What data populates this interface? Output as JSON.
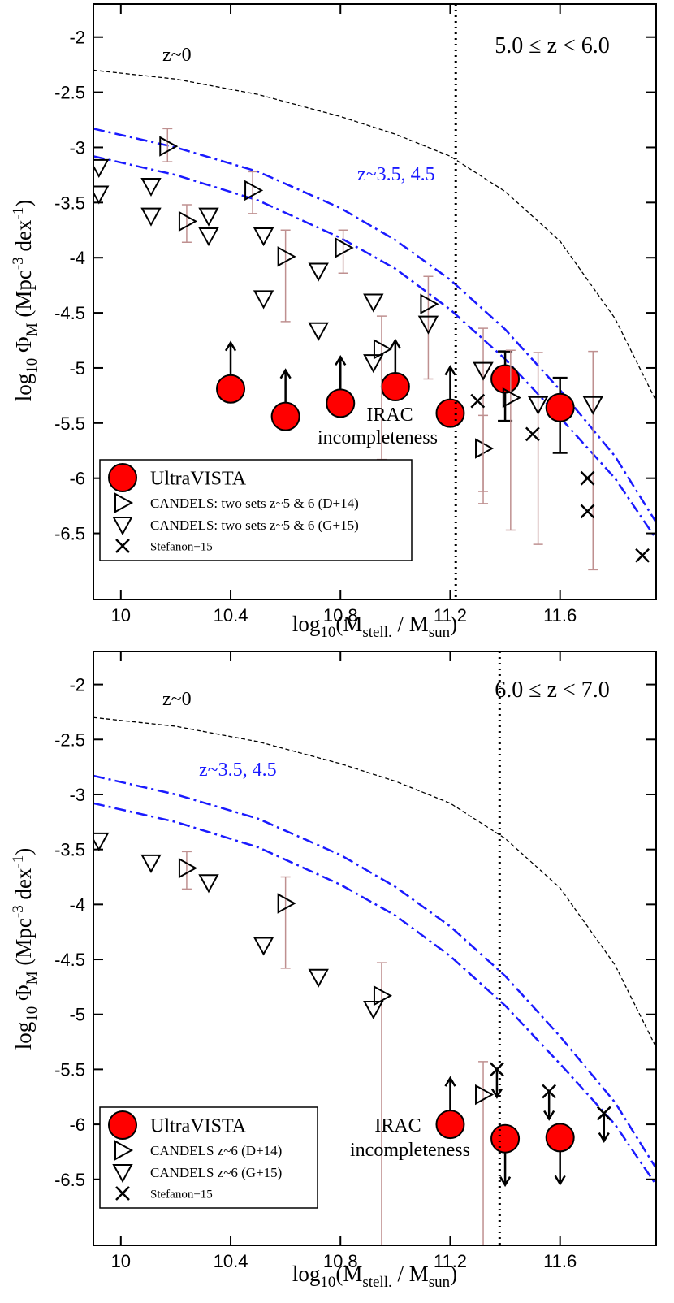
{
  "chart_data": [
    {
      "type": "scatter",
      "panel_label": "5.0 ≤  z < 6.0",
      "annotations": [
        "z~0",
        "z~3.5, 4.5",
        "IRAC",
        "incompleteness"
      ],
      "xlabel": [
        "log",
        "10",
        "(M",
        "stell.",
        " / M",
        "sun",
        ")"
      ],
      "ylabel": [
        "log",
        "10",
        " Φ",
        "M",
        "  (Mpc",
        "-3",
        " dex",
        "-1",
        ")"
      ],
      "xlim": [
        9.9,
        11.95
      ],
      "ylim": [
        -1.7,
        -7.1
      ],
      "xticks": [
        10,
        10.4,
        10.8,
        11.2,
        11.6
      ],
      "yticks": [
        -2,
        -2.5,
        -3,
        -3.5,
        -4,
        -4.5,
        -5,
        -5.5,
        -6,
        -6.5
      ],
      "incompleteness_x": 11.22,
      "legend": "lower left",
      "curves": [
        {
          "color": "#000000",
          "style": "dashed",
          "x": [
            9.9,
            10.2,
            10.5,
            10.8,
            11.0,
            11.2,
            11.4,
            11.6,
            11.8,
            11.95
          ],
          "values": [
            -2.3,
            -2.38,
            -2.52,
            -2.72,
            -2.88,
            -3.08,
            -3.4,
            -3.85,
            -4.55,
            -5.3
          ]
        },
        {
          "color": "#1a1aff",
          "style": "dashdot",
          "x": [
            9.9,
            10.2,
            10.5,
            10.8,
            11.0,
            11.2,
            11.4,
            11.6,
            11.8,
            11.95
          ],
          "values": [
            -2.83,
            -3.0,
            -3.22,
            -3.55,
            -3.84,
            -4.2,
            -4.65,
            -5.2,
            -5.8,
            -6.4
          ]
        },
        {
          "color": "#1a1aff",
          "style": "dashdot",
          "x": [
            9.9,
            10.2,
            10.5,
            10.8,
            11.0,
            11.2,
            11.4,
            11.6,
            11.8,
            11.95
          ],
          "values": [
            -3.08,
            -3.25,
            -3.48,
            -3.82,
            -4.1,
            -4.47,
            -4.92,
            -5.45,
            -6.0,
            -6.55
          ]
        }
      ],
      "series": [
        {
          "name": "UltraVISTA",
          "marker": "circle",
          "color": "#ff0000",
          "x": [
            10.4,
            10.6,
            10.8,
            11.0,
            11.2,
            11.4,
            11.6
          ],
          "values": [
            -5.19,
            -5.44,
            -5.32,
            -5.17,
            -5.41,
            -5.1,
            -5.36
          ],
          "err_minus": [
            null,
            null,
            null,
            null,
            null,
            0.38,
            0.41
          ],
          "err_plus": [
            null,
            null,
            null,
            null,
            null,
            0.25,
            0.27
          ],
          "limit": [
            "lower",
            "lower",
            "lower",
            "lower",
            "lower",
            null,
            null
          ]
        },
        {
          "name": "CANDELS: two sets z~5 & 6 (D+14)",
          "marker": "triangle-right",
          "color": "#000000",
          "x": [
            10.17,
            10.24,
            10.48,
            10.6,
            10.81,
            10.95,
            11.12,
            11.32,
            11.42
          ],
          "values": [
            -2.99,
            -3.67,
            -3.39,
            -3.99,
            -3.91,
            -4.83,
            -4.42,
            -5.73,
            -5.27
          ],
          "err_minus": [
            0.14,
            0.19,
            0.21,
            0.59,
            0.23,
            1.0,
            0.68,
            0.5,
            1.2
          ],
          "err_plus": [
            0.16,
            0.15,
            0.17,
            0.24,
            0.16,
            0.3,
            0.25,
            0.3,
            0.43
          ]
        },
        {
          "name": "CANDELS: two sets z~5 & 6 (G+15)",
          "marker": "triangle-down",
          "color": "#000000",
          "x": [
            9.92,
            9.92,
            10.11,
            10.11,
            10.32,
            10.32,
            10.52,
            10.52,
            10.72,
            10.72,
            10.92,
            10.92,
            11.12,
            11.32,
            11.52,
            11.72
          ],
          "values": [
            -3.18,
            -3.42,
            -3.35,
            -3.62,
            -3.62,
            -3.8,
            -3.8,
            -4.37,
            -4.12,
            -4.66,
            -4.4,
            -4.95,
            -4.6,
            -5.02,
            -5.33,
            -5.33
          ],
          "err_minus": [
            null,
            null,
            null,
            null,
            null,
            null,
            null,
            null,
            null,
            null,
            null,
            null,
            null,
            1.1,
            1.27,
            1.5
          ],
          "err_plus": [
            null,
            null,
            null,
            null,
            null,
            null,
            null,
            null,
            null,
            null,
            null,
            null,
            null,
            0.38,
            0.47,
            0.48
          ]
        },
        {
          "name": "Stefanon+15",
          "marker": "x",
          "color": "#000000",
          "x": [
            11.3,
            11.5,
            11.7,
            11.7,
            11.9
          ],
          "values": [
            -5.3,
            -5.6,
            -6.0,
            -6.3,
            -6.7
          ]
        }
      ]
    },
    {
      "type": "scatter",
      "panel_label": "6.0 ≤  z < 7.0",
      "annotations": [
        "z~0",
        "z~3.5, 4.5",
        "IRAC",
        "incompleteness"
      ],
      "xlabel": [
        "log",
        "10",
        "(M",
        "stell.",
        " / M",
        "sun",
        ")"
      ],
      "ylabel": [
        "log",
        "10",
        " Φ",
        "M",
        "  (Mpc",
        "-3",
        " dex",
        "-1",
        ")"
      ],
      "xlim": [
        9.9,
        11.95
      ],
      "ylim": [
        -1.7,
        -7.1
      ],
      "xticks": [
        10,
        10.4,
        10.8,
        11.2,
        11.6
      ],
      "yticks": [
        -2,
        -2.5,
        -3,
        -3.5,
        -4,
        -4.5,
        -5,
        -5.5,
        -6,
        -6.5
      ],
      "incompleteness_x": 11.38,
      "legend": "lower left",
      "curves": [
        {
          "color": "#000000",
          "style": "dashed",
          "x": [
            9.9,
            10.2,
            10.5,
            10.8,
            11.0,
            11.2,
            11.4,
            11.6,
            11.8,
            11.95
          ],
          "values": [
            -2.3,
            -2.38,
            -2.52,
            -2.72,
            -2.88,
            -3.08,
            -3.4,
            -3.85,
            -4.55,
            -5.3
          ]
        },
        {
          "color": "#1a1aff",
          "style": "dashdot",
          "x": [
            9.9,
            10.2,
            10.5,
            10.8,
            11.0,
            11.2,
            11.4,
            11.6,
            11.8,
            11.95
          ],
          "values": [
            -2.83,
            -3.0,
            -3.22,
            -3.55,
            -3.84,
            -4.2,
            -4.65,
            -5.2,
            -5.8,
            -6.4
          ]
        },
        {
          "color": "#1a1aff",
          "style": "dashdot",
          "x": [
            9.9,
            10.2,
            10.5,
            10.8,
            11.0,
            11.2,
            11.4,
            11.6,
            11.8,
            11.95
          ],
          "values": [
            -3.08,
            -3.25,
            -3.48,
            -3.82,
            -4.1,
            -4.47,
            -4.92,
            -5.45,
            -6.0,
            -6.55
          ]
        }
      ],
      "series": [
        {
          "name": "UltraVISTA",
          "marker": "circle",
          "color": "#ff0000",
          "x": [
            11.2,
            11.4,
            11.6
          ],
          "values": [
            -6.0,
            -6.13,
            -6.12
          ],
          "limit": [
            "lower",
            "upper",
            "upper"
          ]
        },
        {
          "name": "CANDELS z~6 (D+14)",
          "marker": "triangle-right",
          "color": "#000000",
          "x": [
            10.24,
            10.6,
            10.95,
            11.32
          ],
          "values": [
            -3.67,
            -3.99,
            -4.83,
            -5.73
          ],
          "err_minus": [
            0.19,
            0.59,
            2.3,
            1.4
          ],
          "err_plus": [
            0.15,
            0.24,
            0.3,
            0.3
          ]
        },
        {
          "name": "CANDELS z~6 (G+15)",
          "marker": "triangle-down",
          "color": "#000000",
          "x": [
            9.92,
            10.11,
            10.32,
            10.52,
            10.72,
            10.92
          ],
          "values": [
            -3.42,
            -3.62,
            -3.8,
            -4.37,
            -4.66,
            -4.95
          ]
        },
        {
          "name": "Stefanon+15",
          "marker": "x",
          "color": "#000000",
          "x": [
            11.37,
            11.56,
            11.76
          ],
          "values": [
            -5.5,
            -5.7,
            -5.9
          ],
          "limit": [
            "upper",
            "upper",
            "upper"
          ]
        }
      ]
    }
  ]
}
